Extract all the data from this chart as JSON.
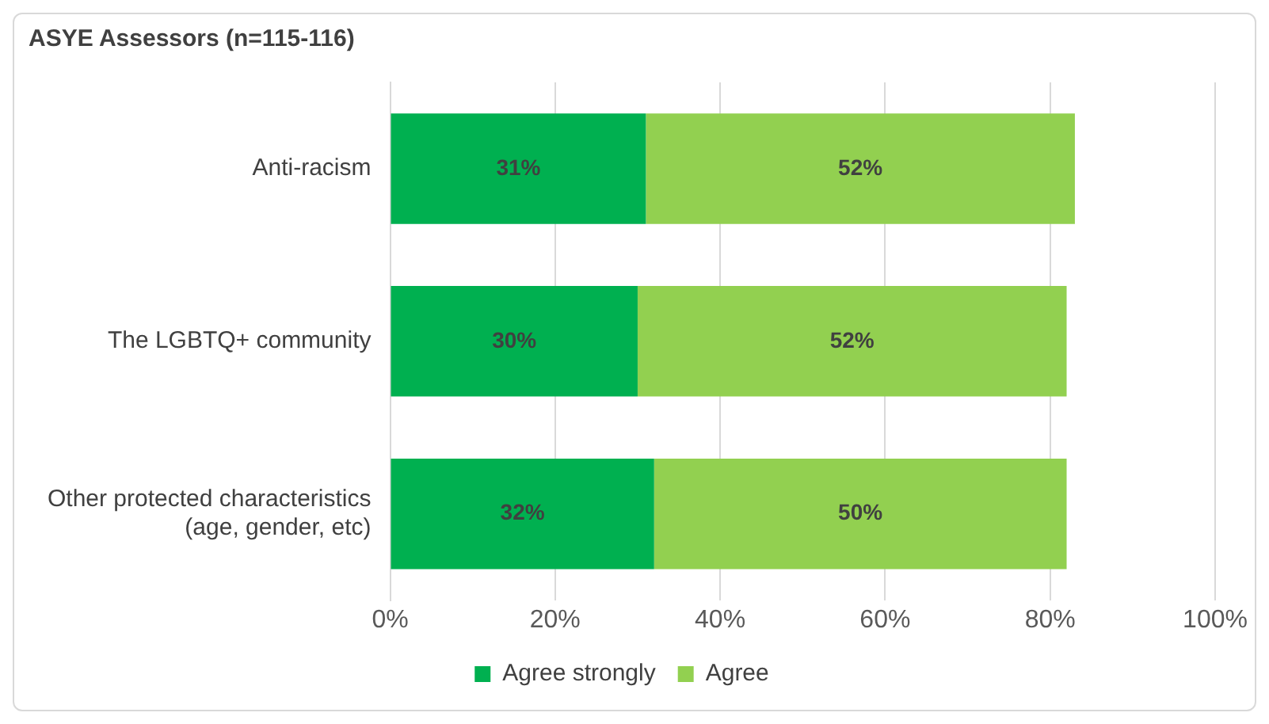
{
  "chart_data": {
    "type": "bar",
    "orientation": "horizontal",
    "stacked": true,
    "title": "ASYE Assessors (n=115-116)",
    "categories": [
      "Anti-racism",
      "The LGBTQ+ community",
      "Other protected characteristics (age, gender, etc)"
    ],
    "series": [
      {
        "name": "Agree strongly",
        "color": "#00b050",
        "values": [
          31,
          30,
          32
        ],
        "value_labels": [
          "31%",
          "30%",
          "32%"
        ]
      },
      {
        "name": "Agree",
        "color": "#92d050",
        "values": [
          52,
          52,
          50
        ],
        "value_labels": [
          "52%",
          "52%",
          "50%"
        ]
      }
    ],
    "xlim": [
      0,
      100
    ],
    "xticks": [
      {
        "value": 0,
        "label": "0%"
      },
      {
        "value": 20,
        "label": "20%"
      },
      {
        "value": 40,
        "label": "40%"
      },
      {
        "value": 60,
        "label": "60%"
      },
      {
        "value": 80,
        "label": "80%"
      },
      {
        "value": 100,
        "label": "100%"
      }
    ],
    "grid": "x",
    "legend": "bottom"
  }
}
